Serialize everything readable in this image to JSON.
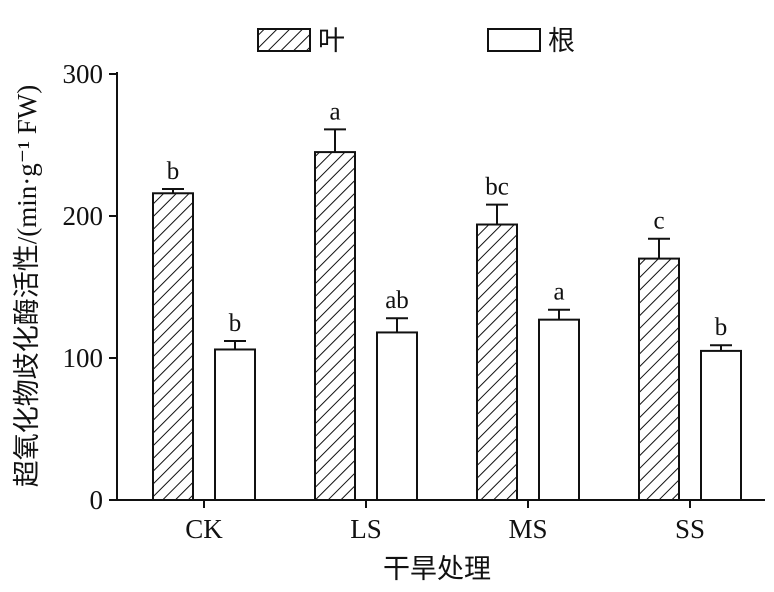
{
  "chart_data": {
    "type": "bar",
    "title": "",
    "xlabel": "干旱处理",
    "ylabel": "超氧化物歧化酶活性/(min·g⁻¹ FW)",
    "categories": [
      "CK",
      "LS",
      "MS",
      "SS"
    ],
    "ylim": [
      0,
      300
    ],
    "yticks": [
      0,
      100,
      200,
      300
    ],
    "grid": false,
    "legend_position": "top",
    "series": [
      {
        "name": "叶",
        "pattern": "hatched",
        "color": "#111111",
        "values": [
          216,
          245,
          194,
          170
        ],
        "errors": [
          3,
          16,
          14,
          14
        ],
        "labels": [
          "b",
          "a",
          "bc",
          "c"
        ]
      },
      {
        "name": "根",
        "pattern": "hollow",
        "color": "#111111",
        "values": [
          106,
          118,
          127,
          105
        ],
        "errors": [
          6,
          10,
          7,
          4
        ],
        "labels": [
          "b",
          "ab",
          "a",
          "b"
        ]
      }
    ]
  }
}
